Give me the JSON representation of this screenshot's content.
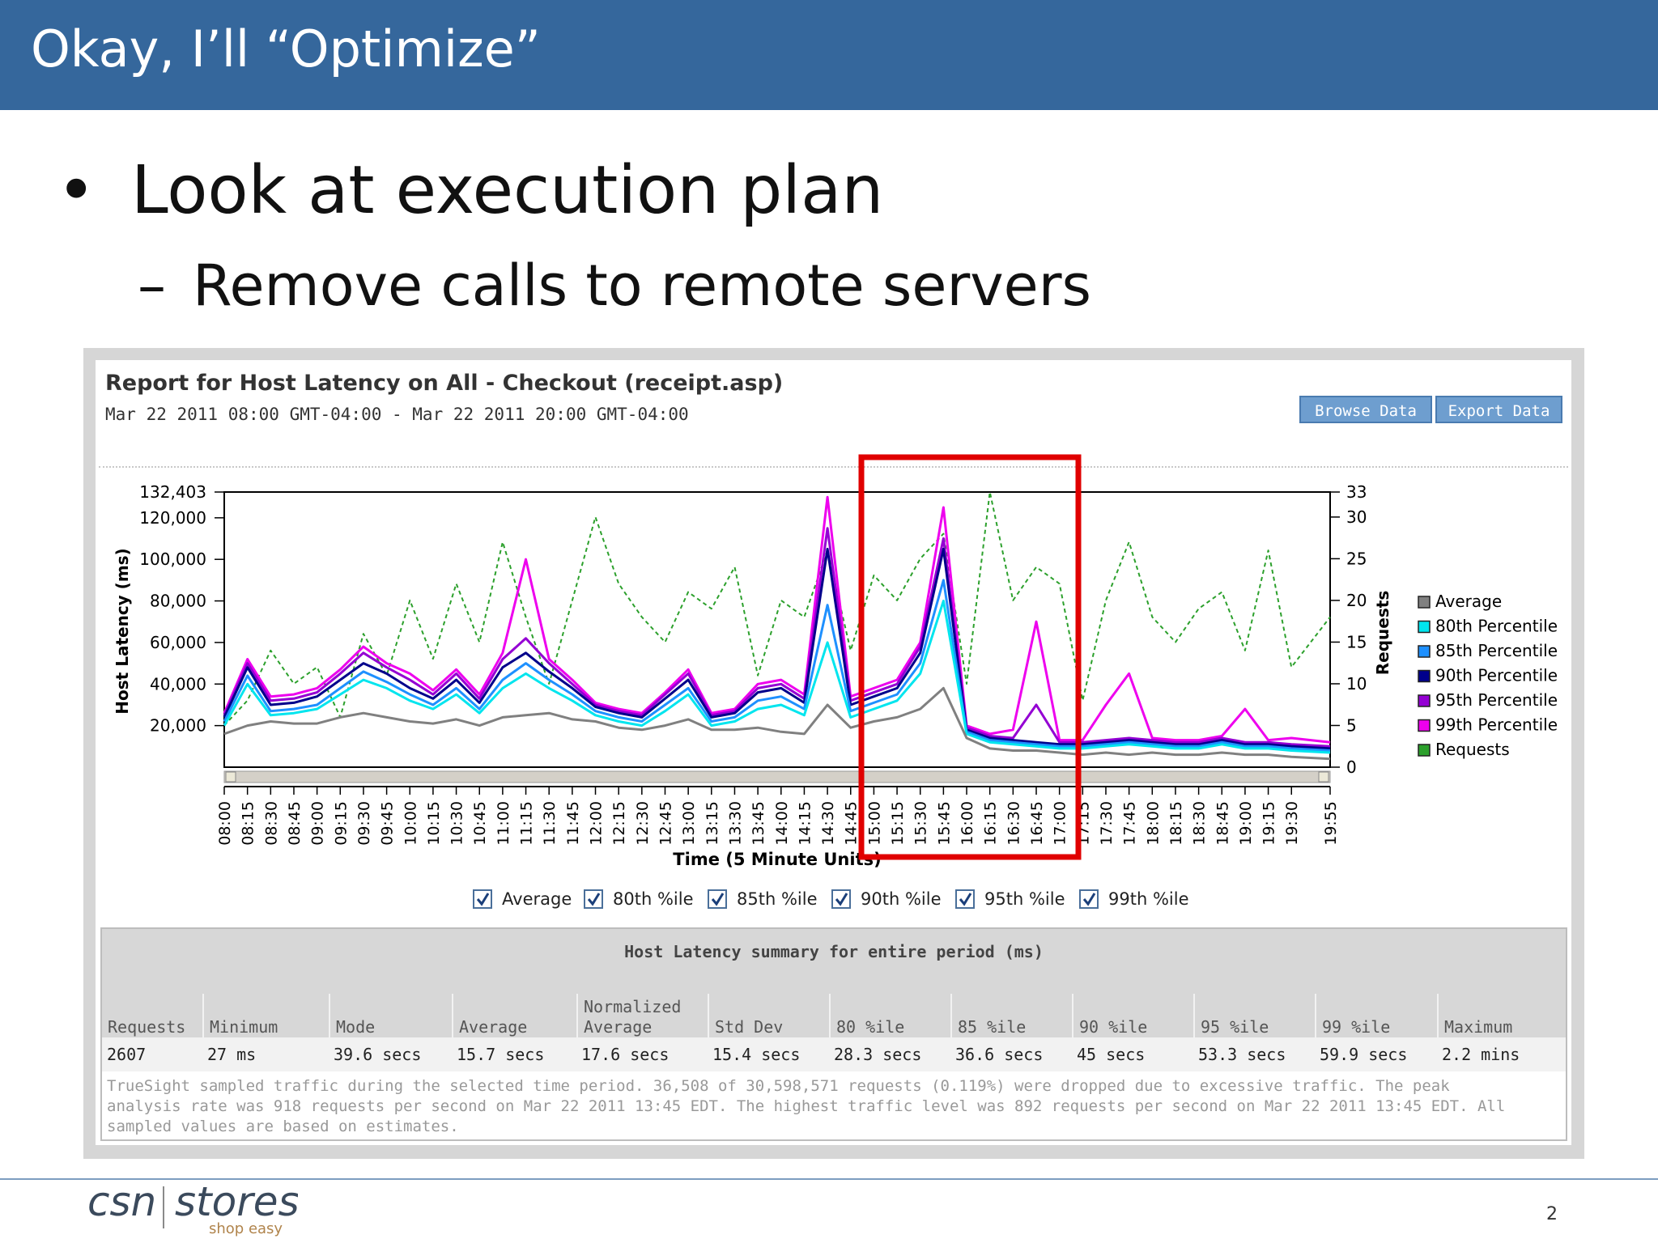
{
  "slide": {
    "title": "Okay, I’ll “Optimize”",
    "bullet1": "Look at execution plan",
    "bullet2": "Remove calls to remote servers",
    "page_number": "2"
  },
  "logo": {
    "left": "csn",
    "right": "stores",
    "tagline": "shop easy"
  },
  "report": {
    "title": "Report for Host Latency on All - Checkout (receipt.asp)",
    "date_range": "Mar 22 2011 08:00 GMT-04:00 - Mar 22 2011 20:00 GMT-04:00",
    "browse_button": "Browse Data",
    "export_button": "Export Data"
  },
  "chart_data": {
    "type": "line",
    "xlabel": "Time (5 Minute Units)",
    "ylabel_left": "Host Latency (ms)",
    "ylabel_right": "Requests",
    "yticks_left": [
      "132,403",
      "120,000",
      "100,000",
      "80,000",
      "60,000",
      "40,000",
      "20,000"
    ],
    "yticks_right": [
      "33",
      "30",
      "25",
      "20",
      "15",
      "10",
      "5",
      "0"
    ],
    "ylim_left": [
      0,
      132403
    ],
    "ylim_right": [
      0,
      33
    ],
    "x_ticks": [
      "08:00",
      "08:15",
      "08:30",
      "08:45",
      "09:00",
      "09:15",
      "09:30",
      "09:45",
      "10:00",
      "10:15",
      "10:30",
      "10:45",
      "11:00",
      "11:15",
      "11:30",
      "11:45",
      "12:00",
      "12:15",
      "12:30",
      "12:45",
      "13:00",
      "13:15",
      "13:30",
      "13:45",
      "14:00",
      "14:15",
      "14:30",
      "14:45",
      "15:00",
      "15:15",
      "15:30",
      "15:45",
      "16:00",
      "16:15",
      "16:30",
      "16:45",
      "17:00",
      "17:15",
      "17:30",
      "17:45",
      "18:00",
      "18:15",
      "18:30",
      "18:45",
      "19:00",
      "19:15",
      "19:30",
      "19:55"
    ],
    "x_range_minutes": [
      480,
      1195
    ],
    "legend_position": "right",
    "series": [
      {
        "name": "Average",
        "color": "#808080",
        "axis": "left",
        "x": [
          480,
          495,
          510,
          525,
          540,
          555,
          570,
          585,
          600,
          615,
          630,
          645,
          660,
          675,
          690,
          705,
          720,
          735,
          750,
          765,
          780,
          795,
          810,
          825,
          840,
          855,
          870,
          885,
          900,
          915,
          930,
          945,
          960,
          975,
          990,
          1005,
          1020,
          1035,
          1050,
          1065,
          1080,
          1095,
          1110,
          1125,
          1140,
          1155,
          1170,
          1195
        ],
        "y": [
          16000,
          20000,
          22000,
          21000,
          21000,
          24000,
          26000,
          24000,
          22000,
          21000,
          23000,
          20000,
          24000,
          25000,
          26000,
          23000,
          22000,
          19000,
          18000,
          20000,
          23000,
          18000,
          18000,
          19000,
          17000,
          16000,
          30000,
          19000,
          22000,
          24000,
          28000,
          38000,
          14000,
          9000,
          8000,
          8000,
          7000,
          6000,
          7000,
          6000,
          7000,
          6000,
          6000,
          7000,
          6000,
          6000,
          5000,
          4000
        ]
      },
      {
        "name": "80th Percentile",
        "color": "#00e5ee",
        "axis": "left",
        "x": [
          480,
          495,
          510,
          525,
          540,
          555,
          570,
          585,
          600,
          615,
          630,
          645,
          660,
          675,
          690,
          705,
          720,
          735,
          750,
          765,
          780,
          795,
          810,
          825,
          840,
          855,
          870,
          885,
          900,
          915,
          930,
          945,
          960,
          975,
          990,
          1005,
          1020,
          1035,
          1050,
          1065,
          1080,
          1095,
          1110,
          1125,
          1140,
          1155,
          1170,
          1195
        ],
        "y": [
          20000,
          40000,
          25000,
          26000,
          28000,
          35000,
          42000,
          38000,
          32000,
          28000,
          35000,
          26000,
          38000,
          45000,
          38000,
          32000,
          25000,
          22000,
          20000,
          27000,
          35000,
          20000,
          22000,
          28000,
          30000,
          25000,
          60000,
          24000,
          28000,
          32000,
          45000,
          80000,
          16000,
          12000,
          11000,
          10000,
          9000,
          9000,
          10000,
          11000,
          10000,
          9000,
          9000,
          11000,
          9000,
          9000,
          8000,
          7000
        ]
      },
      {
        "name": "85th Percentile",
        "color": "#1e90ff",
        "axis": "left",
        "x": [
          480,
          495,
          510,
          525,
          540,
          555,
          570,
          585,
          600,
          615,
          630,
          645,
          660,
          675,
          690,
          705,
          720,
          735,
          750,
          765,
          780,
          795,
          810,
          825,
          840,
          855,
          870,
          885,
          900,
          915,
          930,
          945,
          960,
          975,
          990,
          1005,
          1020,
          1035,
          1050,
          1065,
          1080,
          1095,
          1110,
          1125,
          1140,
          1155,
          1170,
          1195
        ],
        "y": [
          22000,
          44000,
          27000,
          28000,
          30000,
          38000,
          46000,
          41000,
          35000,
          30000,
          38000,
          28000,
          42000,
          50000,
          42000,
          35000,
          27000,
          24000,
          22000,
          30000,
          38000,
          22000,
          24000,
          32000,
          34000,
          28000,
          78000,
          27000,
          31000,
          35000,
          50000,
          90000,
          17000,
          13000,
          12000,
          11000,
          10000,
          10000,
          11000,
          12000,
          11000,
          10000,
          10000,
          12000,
          10000,
          10000,
          9000,
          8000
        ]
      },
      {
        "name": "90th Percentile",
        "color": "#00008b",
        "axis": "left",
        "x": [
          480,
          495,
          510,
          525,
          540,
          555,
          570,
          585,
          600,
          615,
          630,
          645,
          660,
          675,
          690,
          705,
          720,
          735,
          750,
          765,
          780,
          795,
          810,
          825,
          840,
          855,
          870,
          885,
          900,
          915,
          930,
          945,
          960,
          975,
          990,
          1005,
          1020,
          1035,
          1050,
          1065,
          1080,
          1095,
          1110,
          1125,
          1140,
          1155,
          1170,
          1195
        ],
        "y": [
          24000,
          48000,
          30000,
          31000,
          34000,
          42000,
          50000,
          45000,
          38000,
          33000,
          42000,
          31000,
          48000,
          55000,
          46000,
          38000,
          29000,
          26000,
          24000,
          33000,
          42000,
          24000,
          26000,
          36000,
          38000,
          31000,
          105000,
          30000,
          34000,
          38000,
          55000,
          105000,
          18000,
          14000,
          13000,
          12000,
          11000,
          11000,
          12000,
          13000,
          12000,
          11000,
          11000,
          13000,
          11000,
          11000,
          10000,
          9000
        ]
      },
      {
        "name": "95th Percentile",
        "color": "#9400d3",
        "axis": "left",
        "x": [
          480,
          495,
          510,
          525,
          540,
          555,
          570,
          585,
          600,
          615,
          630,
          645,
          660,
          675,
          690,
          705,
          720,
          735,
          750,
          765,
          780,
          795,
          810,
          825,
          840,
          855,
          870,
          885,
          900,
          915,
          930,
          945,
          960,
          975,
          990,
          1005,
          1020,
          1035,
          1050,
          1065,
          1080,
          1095,
          1110,
          1125,
          1140,
          1155,
          1170,
          1195
        ],
        "y": [
          25000,
          50000,
          32000,
          33000,
          36000,
          45000,
          55000,
          48000,
          42000,
          35000,
          45000,
          33000,
          52000,
          62000,
          50000,
          40000,
          30000,
          27000,
          25000,
          35000,
          45000,
          25000,
          27000,
          38000,
          40000,
          33000,
          115000,
          32000,
          36000,
          40000,
          58000,
          110000,
          19000,
          15000,
          14000,
          30000,
          12000,
          12000,
          13000,
          14000,
          13000,
          12000,
          12000,
          14000,
          12000,
          12000,
          11000,
          10000
        ]
      },
      {
        "name": "99th Percentile",
        "color": "#ee00ee",
        "axis": "left",
        "x": [
          480,
          495,
          510,
          525,
          540,
          555,
          570,
          585,
          600,
          615,
          630,
          645,
          660,
          675,
          690,
          705,
          720,
          735,
          750,
          765,
          780,
          795,
          810,
          825,
          840,
          855,
          870,
          885,
          900,
          915,
          930,
          945,
          960,
          975,
          990,
          1005,
          1020,
          1035,
          1050,
          1065,
          1080,
          1095,
          1110,
          1125,
          1140,
          1155,
          1170,
          1195
        ],
        "y": [
          26000,
          52000,
          34000,
          35000,
          38000,
          47000,
          58000,
          50000,
          45000,
          37000,
          47000,
          35000,
          55000,
          100000,
          52000,
          42000,
          31000,
          28000,
          26000,
          36000,
          47000,
          26000,
          28000,
          40000,
          42000,
          35000,
          130000,
          34000,
          38000,
          42000,
          60000,
          125000,
          20000,
          16000,
          18000,
          70000,
          13000,
          13000,
          30000,
          45000,
          14000,
          13000,
          13000,
          15000,
          28000,
          13000,
          14000,
          12000
        ]
      },
      {
        "name": "Requests",
        "color": "#2ca02c",
        "axis": "right",
        "dashed": true,
        "x": [
          480,
          495,
          510,
          525,
          540,
          555,
          570,
          585,
          600,
          615,
          630,
          645,
          660,
          675,
          690,
          705,
          720,
          735,
          750,
          765,
          780,
          795,
          810,
          825,
          840,
          855,
          870,
          885,
          900,
          915,
          930,
          945,
          960,
          975,
          990,
          1005,
          1020,
          1035,
          1050,
          1065,
          1080,
          1095,
          1110,
          1125,
          1140,
          1155,
          1170,
          1195
        ],
        "y": [
          5,
          8,
          14,
          10,
          12,
          6,
          16,
          11,
          20,
          13,
          22,
          15,
          27,
          18,
          10,
          20,
          30,
          22,
          18,
          15,
          21,
          19,
          24,
          11,
          20,
          18,
          26,
          14,
          23,
          20,
          25,
          28,
          10,
          33,
          20,
          24,
          22,
          8,
          20,
          27,
          18,
          15,
          19,
          21,
          14,
          26,
          12,
          18
        ]
      }
    ]
  },
  "checkboxes": [
    "Average",
    "80th %ile",
    "85th %ile",
    "90th %ile",
    "95th %ile",
    "99th %ile"
  ],
  "summary": {
    "title": "Host Latency summary for entire period (ms)",
    "headers": [
      "Requests",
      "Minimum",
      "Mode",
      "Average",
      "Normalized\nAverage",
      "Std Dev",
      "80 %ile",
      "85 %ile",
      "90 %ile",
      "95 %ile",
      "99 %ile",
      "Maximum"
    ],
    "values": [
      "2607",
      "27 ms",
      "39.6 secs",
      "15.7 secs",
      "17.6 secs",
      "15.4 secs",
      "28.3 secs",
      "36.6 secs",
      "45 secs",
      "53.3 secs",
      "59.9 secs",
      "2.2 mins"
    ],
    "note": "TrueSight sampled traffic during the selected time period. 36,508 of 30,598,571 requests (0.119%) were dropped due to excessive traffic. The peak analysis rate was 918 requests per second on Mar 22 2011 13:45 EDT. The highest traffic level was 892 requests per second on Mar 22 2011 13:45 EDT. All sampled values are based on estimates."
  }
}
